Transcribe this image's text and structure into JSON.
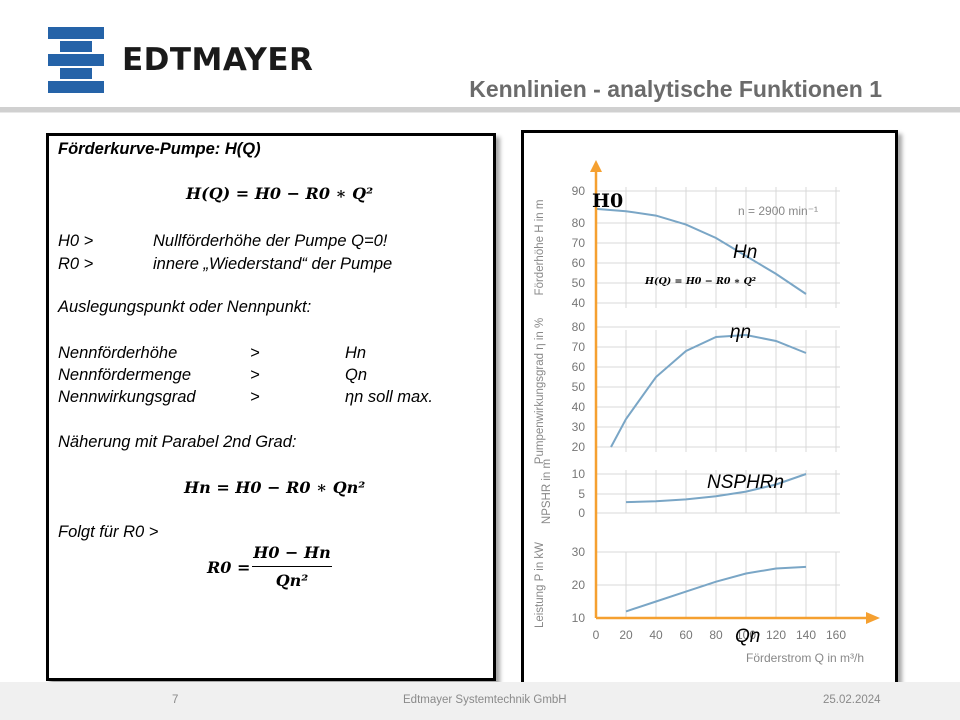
{
  "brand": {
    "name": "EDTMAYER",
    "logo_color": "#2563a8"
  },
  "slide": {
    "title": "Kennlinien - analytische Funktionen 1"
  },
  "left": {
    "heading": "Förderkurve-Pumpe: H(Q)",
    "formula_main": "H(Q) = H0 − R0 ∗ Q²",
    "def_rows": [
      {
        "key": "H0 >",
        "value": "Nullförderhöhe der Pumpe Q=0!"
      },
      {
        "key": "R0 >",
        "value": "innere „Wiederstand“ der Pumpe"
      }
    ],
    "section": "Auslegungspunkt oder Nennpunkt:",
    "nominal_rows": [
      {
        "name": "Nennförderhöhe",
        "op": ">",
        "value": "Hn"
      },
      {
        "name": "Nennfördermenge",
        "op": ">",
        "value": "Qn"
      },
      {
        "name": "Nennwirkungsgrad",
        "op": ">",
        "value": "ηn soll max."
      }
    ],
    "approx": "Näherung mit Parabel 2nd Grad:",
    "formula_approx": "Hn = H0 − R0 ∗ Qn²",
    "follows": "Folgt für R0 >",
    "r0_lhs": "R0 =",
    "r0_num": "H0 − Hn",
    "r0_den": "Qn²"
  },
  "annotations": {
    "h0": "H0",
    "hn": "Hn",
    "formula_small": "H(Q) = H0 − R0 ∗ Q²",
    "eta_n": "ηn",
    "nsphr": "NSPHRn",
    "qn": "Qn"
  },
  "footer": {
    "page": "7",
    "company": "Edtmayer Systemtechnik GmbH",
    "date": "25.02.2024"
  },
  "chart_data": {
    "type": "line",
    "x": [
      0,
      20,
      40,
      60,
      80,
      100,
      120,
      140
    ],
    "x_ticks": [
      "0",
      "20",
      "40",
      "60",
      "80",
      "100",
      "120",
      "140",
      "160"
    ],
    "xlabel": "Förderstrom Q in m³/h",
    "axis_color": "#f5a030",
    "curve_color": "#7aa6c6",
    "grid": true,
    "panels": [
      {
        "ylabel": "Förderhöhe H in m",
        "y_ticks": [
          "40",
          "50",
          "60",
          "70",
          "80",
          "90"
        ],
        "ylim": [
          40,
          90
        ],
        "note": "n = 2900 min⁻¹",
        "points": [
          [
            0,
            82
          ],
          [
            20,
            81
          ],
          [
            40,
            79
          ],
          [
            60,
            75
          ],
          [
            80,
            69
          ],
          [
            100,
            61
          ],
          [
            120,
            53
          ],
          [
            140,
            44
          ]
        ]
      },
      {
        "ylabel": "Pumpenwirkungsgrad η in %",
        "y_ticks": [
          "20",
          "30",
          "40",
          "50",
          "60",
          "70",
          "80"
        ],
        "ylim": [
          10,
          85
        ],
        "points": [
          [
            10,
            20
          ],
          [
            20,
            34
          ],
          [
            40,
            55
          ],
          [
            60,
            68
          ],
          [
            80,
            75
          ],
          [
            100,
            76
          ],
          [
            120,
            73
          ],
          [
            140,
            67
          ]
        ]
      },
      {
        "ylabel": "NPSHR in m",
        "y_ticks": [
          "0",
          "5",
          "10"
        ],
        "ylim": [
          0,
          10
        ],
        "points": [
          [
            20,
            2.8
          ],
          [
            40,
            3
          ],
          [
            60,
            3.5
          ],
          [
            80,
            4.3
          ],
          [
            100,
            5.5
          ],
          [
            120,
            7.3
          ],
          [
            140,
            10
          ]
        ]
      },
      {
        "ylabel": "Leistung P in kW",
        "y_ticks": [
          "10",
          "20",
          "30"
        ],
        "ylim": [
          10,
          30
        ],
        "points": [
          [
            20,
            12
          ],
          [
            40,
            15
          ],
          [
            60,
            18
          ],
          [
            80,
            21
          ],
          [
            100,
            23.5
          ],
          [
            120,
            25
          ],
          [
            140,
            25.5
          ]
        ]
      }
    ]
  }
}
